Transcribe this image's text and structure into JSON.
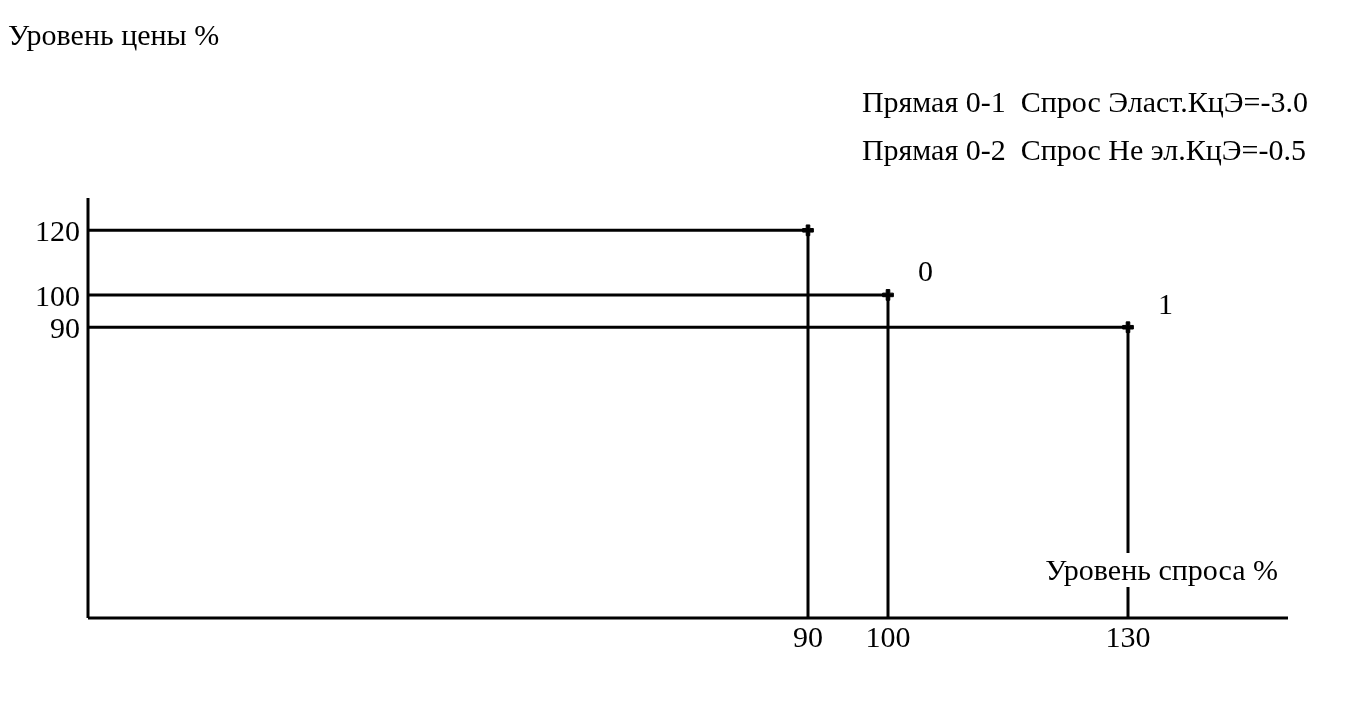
{
  "chart_data": {
    "type": "scatter",
    "xlabel": "Уровень спроса %",
    "ylabel": "Уровень цены %",
    "x": [
      90,
      100,
      130
    ],
    "series": [
      {
        "color": "#000000",
        "values": [
          120,
          100,
          90
        ]
      },
      {
        "type": "line",
        "marker": "none",
        "color": "#000000",
        "x": [
          0,
          90,
          90
        ],
        "values": [
          120,
          120,
          0
        ]
      },
      {
        "type": "line",
        "marker": "none",
        "color": "#000000",
        "x": [
          0,
          100,
          100
        ],
        "values": [
          100,
          100,
          0
        ]
      },
      {
        "type": "line",
        "marker": "none",
        "color": "#000000",
        "x": [
          0,
          130,
          130
        ],
        "values": [
          90,
          90,
          0
        ]
      }
    ],
    "marker": "cross",
    "xlim": [
      0,
      150
    ],
    "ylim": [
      0,
      130
    ],
    "xticks": [
      90,
      100,
      130
    ],
    "yticks": [
      90,
      100,
      120
    ],
    "annotations": [
      "Прямая 0-1  Спрос Эласт.КцЭ=-3.0",
      "Прямая 0-2  Спрос Не эл.КцЭ=-0.5",
      {
        "text": "0",
        "x": 100,
        "y": 100
      },
      {
        "text": "1",
        "x": 130,
        "y": 90
      }
    ]
  }
}
